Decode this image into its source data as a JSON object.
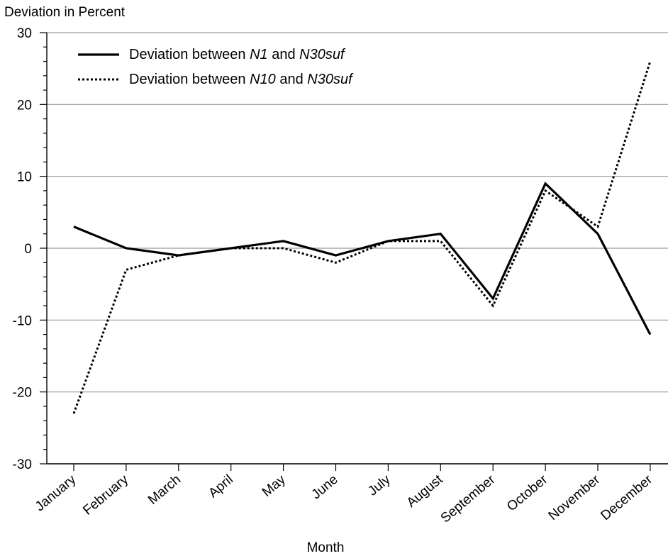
{
  "chart_data": {
    "type": "line",
    "ylabel": "Deviation in Percent",
    "xlabel": "Month",
    "ylim": [
      -30,
      30
    ],
    "yticks": [
      30,
      20,
      10,
      0,
      -10,
      -20,
      -30
    ],
    "grid": true,
    "legend_position": "top-left",
    "categories": [
      "January",
      "February",
      "March",
      "April",
      "May",
      "June",
      "July",
      "August",
      "September",
      "October",
      "November",
      "December"
    ],
    "series": [
      {
        "legend_parts": [
          {
            "text": "Deviation between ",
            "italic": false
          },
          {
            "text": "N1",
            "italic": true
          },
          {
            "text": " and ",
            "italic": false
          },
          {
            "text": "N30suf",
            "italic": true
          }
        ],
        "style": "solid",
        "color": "#000000",
        "values": [
          3,
          0,
          -1,
          0,
          1,
          -1,
          1,
          2,
          -7,
          9,
          2,
          -12
        ]
      },
      {
        "legend_parts": [
          {
            "text": "Deviation between ",
            "italic": false
          },
          {
            "text": "N10",
            "italic": true
          },
          {
            "text": " and ",
            "italic": false
          },
          {
            "text": "N30suf",
            "italic": true
          }
        ],
        "style": "dotted",
        "color": "#000000",
        "values": [
          -23,
          -3,
          -1,
          0,
          0,
          -2,
          1,
          1,
          -8,
          8,
          3,
          26
        ]
      }
    ]
  }
}
